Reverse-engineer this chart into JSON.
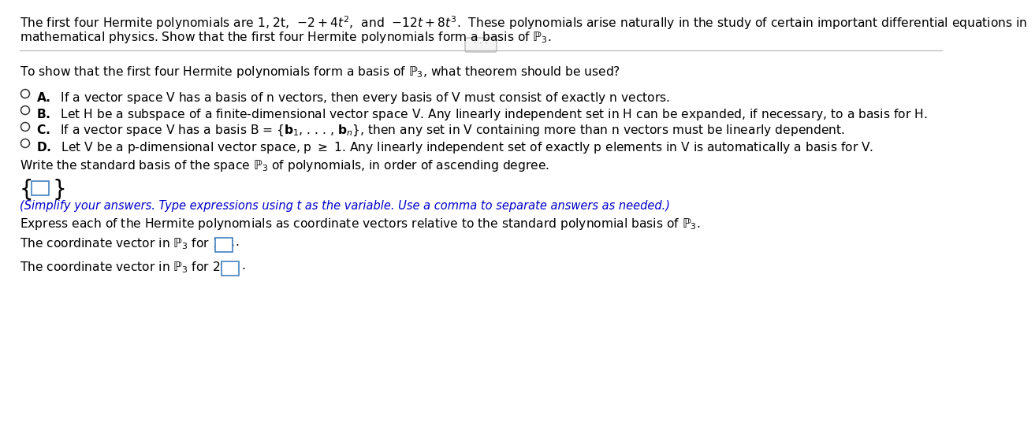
{
  "bg_color": "#ffffff",
  "text_color": "#000000",
  "blue_color": "#0000cc",
  "fs_main": 11.2,
  "fs_hint": 10.5,
  "ml": 15,
  "intro1": "The first four Hermite polynomials are 1, 2t,  $-2+4t^2$,  and  $-12t+8t^3$.  These polynomials arise naturally in the study of certain important differential equations in",
  "intro2": "mathematical physics. Show that the first four Hermite polynomials form a basis of $\\mathbb{P}_3$.",
  "q1": "To show that the first four Hermite polynomials form a basis of $\\mathbb{P}_3$, what theorem should be used?",
  "optA": "\\bf{A.}\\rm{}  If a vector space V has a basis of n vectors, then every basis of V must consist of exactly n vectors.",
  "optB": "\\bf{B.}\\rm{}  Let H be a subspace of a finite-dimensional vector space V. Any linearly independent set in H can be expanded, if necessary, to a basis for H.",
  "optC_label": "C.",
  "optC_text": "  If a vector space V has a basis B = {$\\mathbf{b}_1$, . . . , $\\mathbf{b}_n$}, then any set in V containing more than n vectors must be linearly dependent.",
  "optD": "\\bf{D.}\\rm{}  Let V be a p-dimensional vector space, p $\\geq$ 1. Any linearly independent set of exactly p elements in V is automatically a basis for V.",
  "q2": "Write the standard basis of the space $\\mathbb{P}_3$ of polynomials, in order of ascending degree.",
  "hint": "(Simplify your answers. Type expressions using t as the variable. Use a comma to separate answers as needed.)",
  "q3": "Express each of the Hermite polynomials as coordinate vectors relative to the standard polynomial basis of $\\mathbb{P}_3$.",
  "cv1": "The coordinate vector in $\\mathbb{P}_3$ for 1 is",
  "cv2": "The coordinate vector in $\\mathbb{P}_3$ for 2t is"
}
